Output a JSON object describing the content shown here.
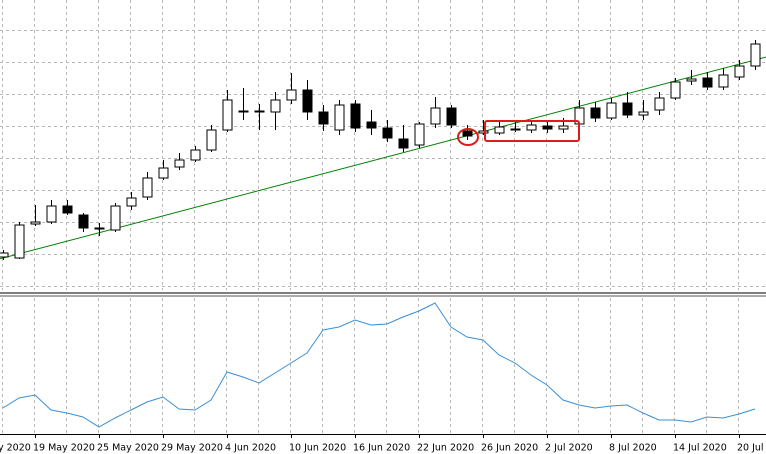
{
  "chart_data": [
    {
      "type": "candlestick",
      "categories": [
        null,
        null,
        "19 May 2020",
        null,
        null,
        null,
        "25 May 2020",
        null,
        null,
        null,
        "29 May 2020",
        null,
        null,
        null,
        "4 Jun 2020",
        null,
        null,
        null,
        "10 Jun 2020",
        null,
        null,
        null,
        "16 Jun 2020",
        null,
        null,
        null,
        "22 Jun 2020",
        null,
        null,
        null,
        "26 Jun 2020",
        null,
        null,
        null,
        "2 Jul 2020",
        null,
        null,
        null,
        "8 Jul 2020",
        null,
        null,
        null,
        "14 Jul 2020",
        null,
        null,
        null,
        "20 Jul 2020",
        null
      ],
      "axis_edge_label": "y 2020",
      "open": [
        43,
        42,
        76,
        78,
        94,
        85,
        71,
        70,
        94,
        103,
        122,
        133,
        140,
        150,
        170,
        189,
        189,
        188,
        200,
        210,
        188,
        170,
        196,
        178,
        172,
        161,
        155,
        176,
        192,
        169,
        167,
        167,
        171,
        170,
        174,
        171,
        176,
        192,
        182,
        197,
        185,
        190,
        202,
        219,
        222,
        213,
        223,
        234
      ],
      "high": [
        50,
        78,
        95,
        100,
        100,
        87,
        77,
        97,
        108,
        128,
        140,
        147,
        154,
        175,
        210,
        212,
        196,
        208,
        227,
        220,
        195,
        200,
        200,
        190,
        180,
        175,
        178,
        203,
        195,
        175,
        180,
        180,
        180,
        180,
        180,
        182,
        200,
        198,
        202,
        208,
        200,
        208,
        222,
        230,
        228,
        232,
        240,
        260
      ],
      "low": [
        40,
        41,
        74,
        76,
        85,
        68,
        64,
        68,
        90,
        100,
        120,
        130,
        138,
        148,
        168,
        180,
        170,
        170,
        196,
        180,
        169,
        165,
        168,
        165,
        158,
        148,
        152,
        172,
        172,
        160,
        165,
        165,
        168,
        167,
        167,
        167,
        172,
        178,
        180,
        182,
        180,
        185,
        200,
        215,
        210,
        210,
        220,
        230
      ],
      "close": [
        47,
        75,
        78,
        94,
        87,
        72,
        72,
        94,
        102,
        122,
        132,
        140,
        150,
        170,
        200,
        188,
        188,
        200,
        210,
        188,
        176,
        195,
        172,
        172,
        162,
        152,
        176,
        192,
        175,
        164,
        169,
        173,
        170,
        175,
        171,
        174,
        192,
        182,
        197,
        185,
        188,
        202,
        218,
        221,
        213,
        225,
        234,
        256
      ],
      "bull_color": "#ffffff",
      "bear_color": "#000000",
      "trendline": {
        "values": [
          42,
          240
        ],
        "color": "#008000"
      },
      "ylim": [
        10,
        300
      ]
    },
    {
      "type": "line",
      "values": [
        26,
        36,
        39,
        24,
        21,
        17,
        7,
        16,
        24,
        32,
        37,
        25,
        24,
        34,
        62,
        57,
        51,
        61,
        71,
        81,
        104,
        107,
        114,
        109,
        110,
        117,
        123,
        131,
        107,
        97,
        94,
        79,
        71,
        59,
        49,
        34,
        29,
        26,
        28,
        29,
        21,
        14,
        14,
        12,
        17,
        16,
        20,
        25
      ],
      "color": "#3a8fd6",
      "ylim": [
        0,
        136
      ]
    }
  ]
}
